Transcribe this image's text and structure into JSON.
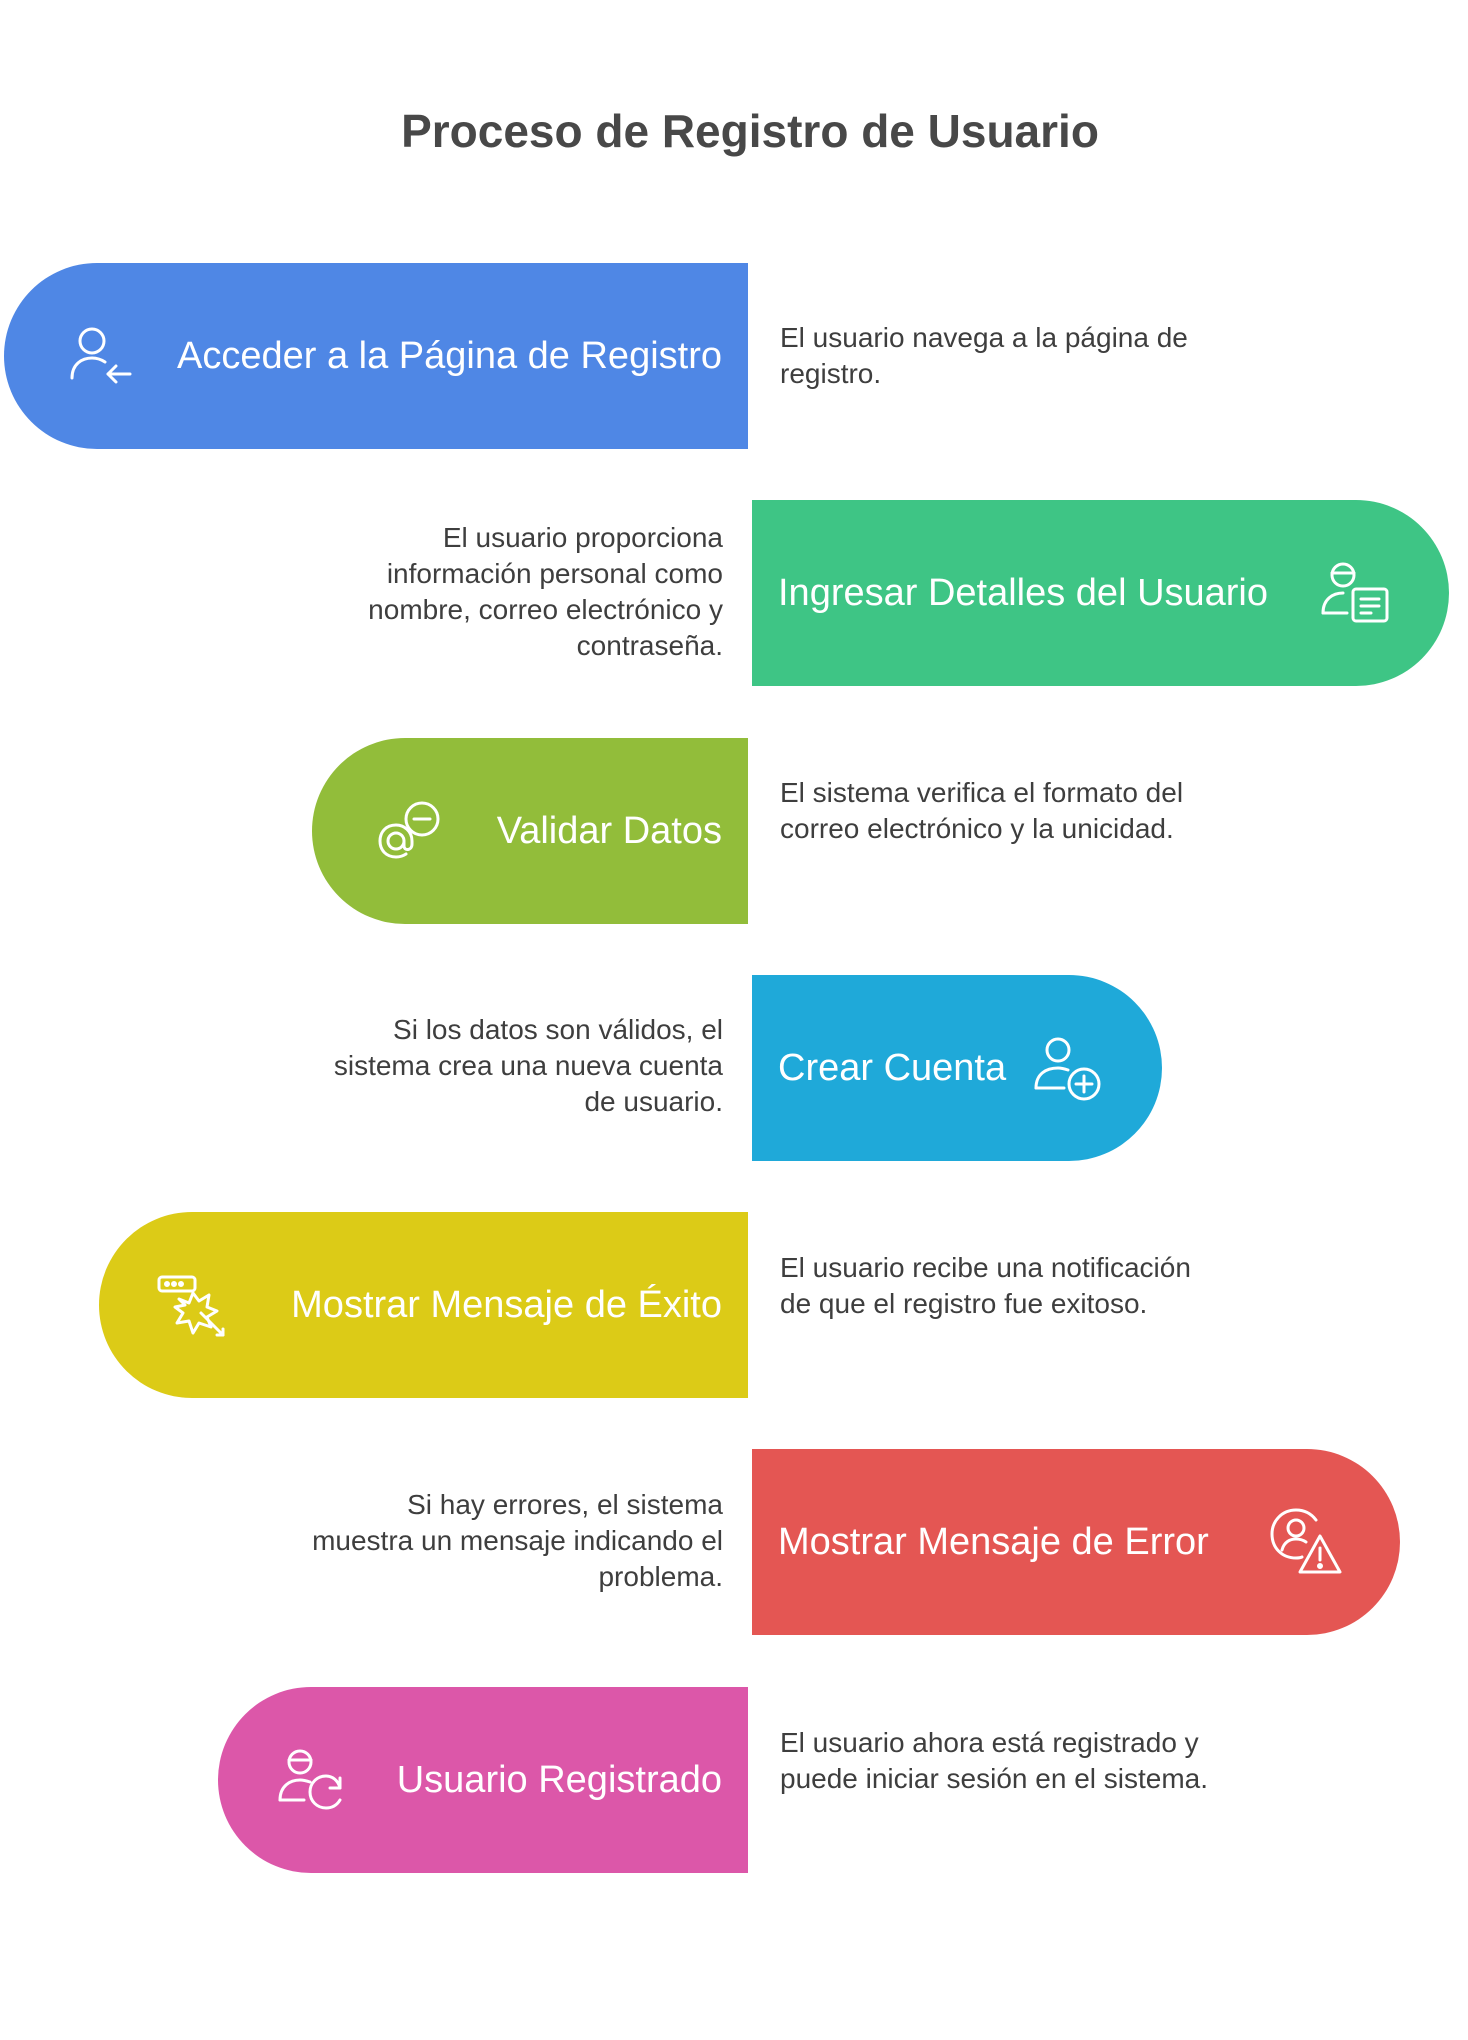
{
  "title": "Proceso de Registro de Usuario",
  "steps": [
    {
      "label": "Acceder a la Página de Registro",
      "description": "El usuario navega a la página de registro.",
      "color": "#4f87e5",
      "icon": "user-arrow-left-icon"
    },
    {
      "label": "Ingresar Detalles del Usuario",
      "description": "El usuario proporciona información personal como nombre, correo electrónico y contraseña.",
      "color": "#3ec585",
      "icon": "user-form-icon"
    },
    {
      "label": "Validar Datos",
      "description": "El sistema verifica el formato del correo electrónico y la unicidad.",
      "color": "#92bd3a",
      "icon": "at-minus-icon"
    },
    {
      "label": "Crear Cuenta",
      "description": "Si los datos son válidos, el sistema crea una nueva cuenta de usuario.",
      "color": "#1fa9d9",
      "icon": "user-plus-icon"
    },
    {
      "label": "Mostrar Mensaje de Éxito",
      "description": "El usuario recibe una notificación de que el registro fue exitoso.",
      "color": "#dccb17",
      "icon": "success-burst-icon"
    },
    {
      "label": "Mostrar Mensaje de Error",
      "description": "Si hay errores, el sistema muestra un mensaje indicando el problema.",
      "color": "#e45653",
      "icon": "user-warning-icon"
    },
    {
      "label": "Usuario Registrado",
      "description": "El usuario ahora está registrado y puede iniciar sesión en el sistema.",
      "color": "#dc57a9",
      "icon": "user-refresh-icon"
    }
  ]
}
